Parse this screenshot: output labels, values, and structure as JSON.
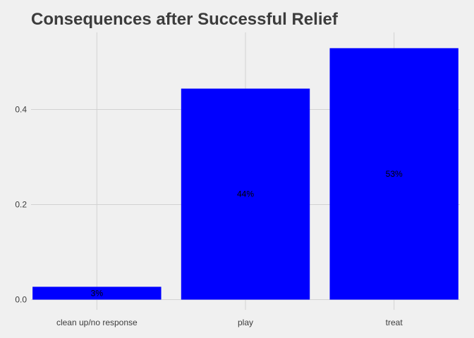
{
  "chart_data": {
    "type": "bar",
    "title": "Consequences after Successful Relief",
    "xlabel": "",
    "ylabel": "",
    "categories": [
      "clean up/no response",
      "play",
      "treat"
    ],
    "values": [
      0.027,
      0.444,
      0.529
    ],
    "data_labels": [
      "3%",
      "44%",
      "53%"
    ],
    "ylim": [
      0,
      0.56
    ],
    "yticks": [
      0.0,
      0.2,
      0.4
    ],
    "ytick_labels": [
      "0.0",
      "0.2",
      "0.4"
    ],
    "bar_color": "#0000FF",
    "background_color": "#F0F0F0",
    "grid": true,
    "legend": "none"
  }
}
